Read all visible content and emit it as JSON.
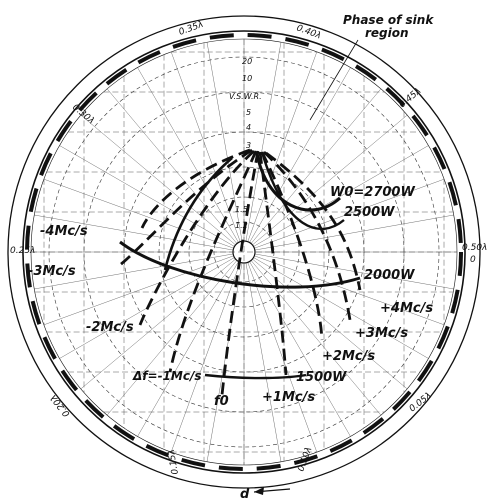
{
  "header": {
    "phase_label_line1": "Phase of sink",
    "phase_label_line2": "region"
  },
  "vswr": {
    "axis_label": "V.S.W.R.",
    "ticks": [
      "20",
      "10",
      "5",
      "4",
      "3",
      "1.5",
      "1.2"
    ]
  },
  "wavelength_labels": [
    "0.35λ",
    "0.40λ",
    "0.45λ",
    "0.50λ",
    "0",
    "0.05λ",
    "0.10λ",
    "0.15λ",
    "0.20λ",
    "0.25λ",
    "0.30λ"
  ],
  "power_contours": [
    "W0=2700W",
    "2500W",
    "2000W",
    "1500W"
  ],
  "frequency_contours": [
    "-4Mc/s",
    "-3Mc/s",
    "-2Mc/s",
    "Δf=-1Mc/s",
    "f0",
    "+1Mc/s",
    "+2Mc/s",
    "+3Mc/s",
    "+4Mc/s"
  ],
  "direction_label": "d",
  "colors": {
    "ink": "#111111",
    "paper": "#ffffff"
  }
}
